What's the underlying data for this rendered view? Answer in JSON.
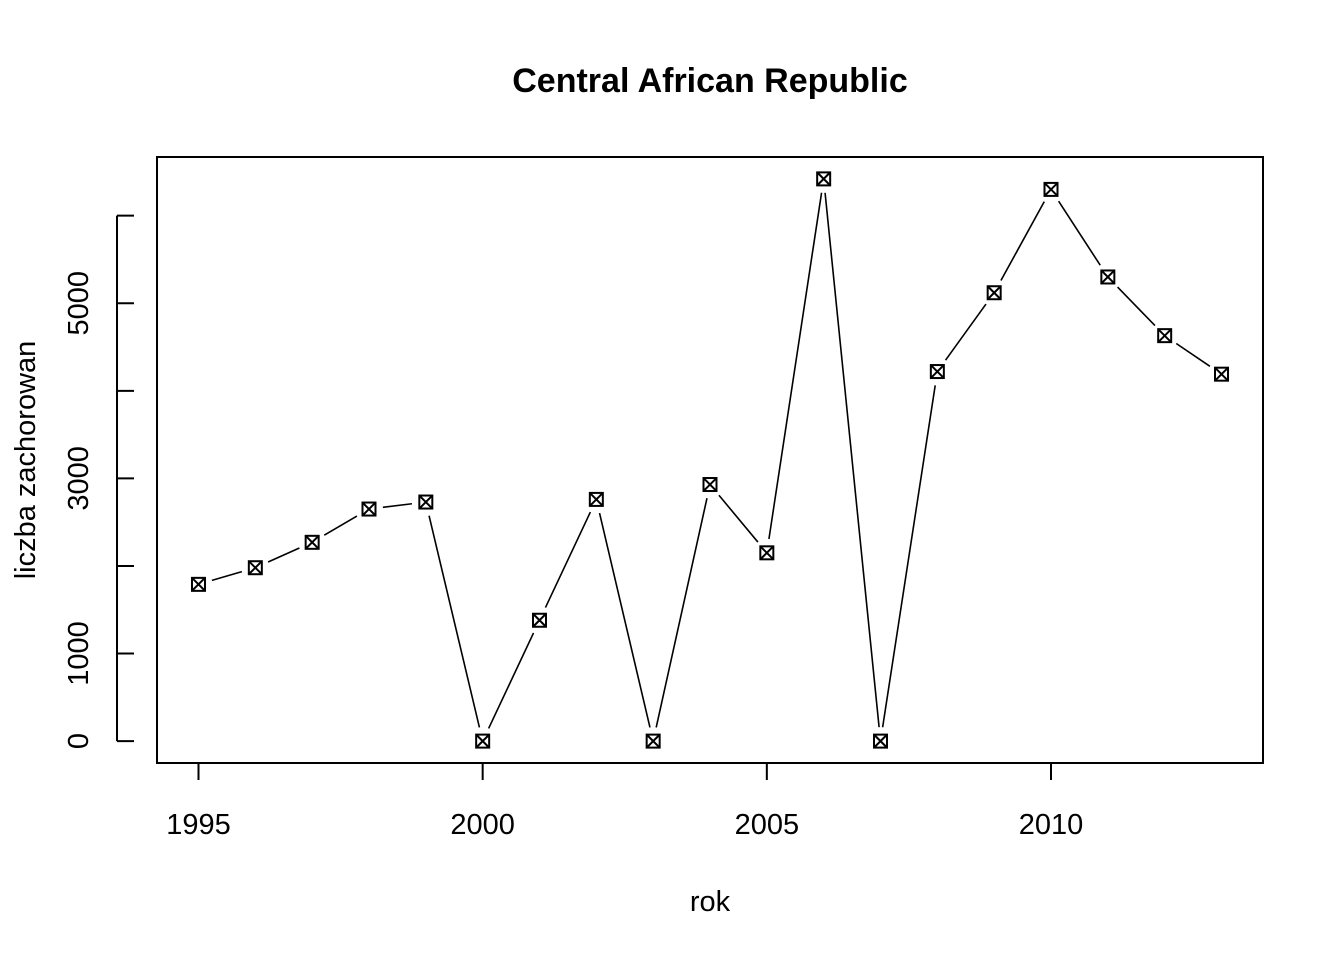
{
  "chart_data": {
    "type": "line",
    "title": "Central African Republic",
    "xlabel": "rok",
    "ylabel": "liczba zachorowan",
    "x": [
      1995,
      1996,
      1997,
      1998,
      1999,
      2000,
      2001,
      2002,
      2003,
      2004,
      2005,
      2006,
      2007,
      2008,
      2009,
      2010,
      2011,
      2012,
      2013
    ],
    "series": [
      {
        "values": [
          1790,
          1980,
          2270,
          2650,
          2730,
          0,
          1380,
          2760,
          0,
          2930,
          2150,
          6420,
          0,
          4220,
          5120,
          6300,
          5300,
          4630,
          4190
        ]
      }
    ],
    "xlim": [
      1994.27,
      2013.73
    ],
    "ylim": [
      -250,
      6670
    ],
    "x_ticks": [
      "1995",
      "2000",
      "2005",
      "2010"
    ],
    "y_ticks": [
      0,
      1000,
      2000,
      3000,
      4000,
      5000,
      6000
    ],
    "y_tick_labels": [
      "0",
      "1000",
      "",
      "3000",
      "",
      "5000",
      ""
    ],
    "marker": "boxed-x",
    "grid": false
  }
}
